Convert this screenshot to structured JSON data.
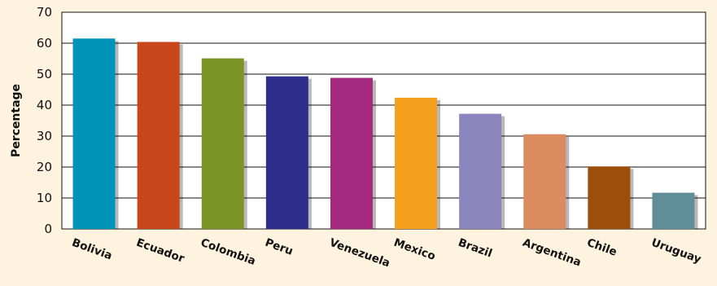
{
  "chart_data": {
    "type": "bar",
    "ylabel": "Percentage",
    "ylim": [
      0,
      70
    ],
    "yticks": [
      0,
      10,
      20,
      30,
      40,
      50,
      60,
      70
    ],
    "grid": true,
    "categories": [
      "Bolivia",
      "Ecuador",
      "Colombia",
      "Peru",
      "Venezuela",
      "Mexico",
      "Brazil",
      "Argentina",
      "Chile",
      "Uruguay"
    ],
    "values": [
      61.5,
      60.4,
      55.1,
      49.3,
      48.8,
      42.4,
      37.2,
      30.6,
      20.2,
      11.7
    ],
    "colors": [
      "#0093b8",
      "#c7461a",
      "#7a9526",
      "#2e2f8d",
      "#a3287e",
      "#f4a01e",
      "#8c86bf",
      "#dc8a5f",
      "#9e4e0b",
      "#5f8e98"
    ],
    "background": "#fdf3df"
  }
}
